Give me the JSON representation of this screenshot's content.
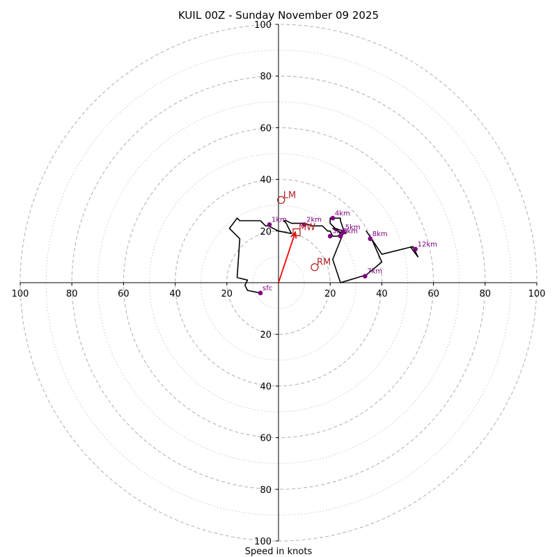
{
  "chart_data": {
    "type": "line",
    "title": "KUIL 00Z - Sunday November 09 2025",
    "xlabel": "Speed in knots",
    "ylabel": "",
    "axis_range": [
      -100,
      100
    ],
    "rings_major": [
      20,
      40,
      60,
      80,
      100
    ],
    "rings_minor": [
      10,
      30,
      50,
      70,
      90
    ],
    "ticks": [
      {
        "value": -100,
        "label": "100"
      },
      {
        "value": -80,
        "label": "80"
      },
      {
        "value": -60,
        "label": "60"
      },
      {
        "value": -40,
        "label": "40"
      },
      {
        "value": -20,
        "label": "20"
      },
      {
        "value": 20,
        "label": "20"
      },
      {
        "value": 40,
        "label": "40"
      },
      {
        "value": 60,
        "label": "60"
      },
      {
        "value": 80,
        "label": "80"
      },
      {
        "value": 100,
        "label": "100"
      }
    ],
    "hodograph": {
      "color": "#000000",
      "points": [
        [
          -7,
          -4
        ],
        [
          -12,
          -3
        ],
        [
          -13,
          -1
        ],
        [
          -12,
          1
        ],
        [
          -16,
          2
        ],
        [
          -15,
          17
        ],
        [
          -19,
          21
        ],
        [
          -16,
          25
        ],
        [
          -15,
          24
        ],
        [
          -11,
          24
        ],
        [
          -7,
          24
        ],
        [
          -6,
          23
        ],
        [
          -5,
          22
        ],
        [
          -4,
          22
        ],
        [
          0,
          20
        ],
        [
          5,
          19
        ],
        [
          4,
          21
        ],
        [
          3,
          23
        ],
        [
          2,
          24
        ],
        [
          3,
          24
        ],
        [
          5,
          23
        ],
        [
          8,
          23
        ],
        [
          10,
          23
        ],
        [
          13,
          22
        ],
        [
          17,
          22
        ],
        [
          18,
          21
        ],
        [
          19,
          20
        ],
        [
          20,
          20
        ],
        [
          21,
          18
        ],
        [
          23,
          18
        ],
        [
          24,
          19
        ],
        [
          21,
          22
        ],
        [
          20,
          23
        ],
        [
          20,
          25
        ],
        [
          21,
          25
        ],
        [
          24,
          25
        ],
        [
          24,
          24
        ],
        [
          25,
          21
        ],
        [
          26,
          19
        ],
        [
          25,
          20
        ],
        [
          22,
          21
        ],
        [
          21,
          21
        ],
        [
          25,
          19
        ],
        [
          21,
          9
        ],
        [
          24,
          0
        ],
        [
          34,
          3
        ],
        [
          40,
          8
        ],
        [
          36,
          17
        ],
        [
          34,
          20
        ],
        [
          36,
          17
        ],
        [
          40,
          11
        ],
        [
          52,
          14
        ],
        [
          54,
          10
        ],
        [
          51,
          14
        ]
      ]
    },
    "height_markers": {
      "color": "#800080",
      "items": [
        {
          "label": "sfc",
          "u": -7,
          "v": -4
        },
        {
          "label": "1km",
          "u": -3.5,
          "v": 22.5
        },
        {
          "label": "2km",
          "u": 10,
          "v": 22.5
        },
        {
          "label": "3km",
          "u": 20,
          "v": 18
        },
        {
          "label": "4km",
          "u": 21,
          "v": 25
        },
        {
          "label": "5km",
          "u": 25,
          "v": 19.5
        },
        {
          "label": "6km",
          "u": 24,
          "v": 18
        },
        {
          "label": "7km",
          "u": 33.5,
          "v": 2.5
        },
        {
          "label": "8km",
          "u": 35.5,
          "v": 17
        },
        {
          "label": "12km",
          "u": 53,
          "v": 13
        }
      ]
    },
    "storm_motion": {
      "color": "#b22222",
      "markers": [
        {
          "label": "LM",
          "u": 1,
          "v": 32,
          "shape": "circle"
        },
        {
          "label": "RM",
          "u": 14,
          "v": 6,
          "shape": "circle"
        },
        {
          "label": "MW",
          "u": 7,
          "v": 19.5,
          "shape": "square"
        }
      ],
      "mean_wind_vector": {
        "color": "#ff0000",
        "from": [
          0,
          0
        ],
        "to": [
          6.5,
          19.5
        ]
      }
    }
  }
}
